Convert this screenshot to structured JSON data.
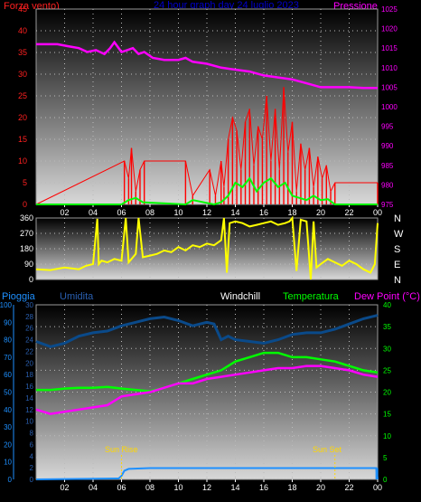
{
  "header": {
    "wind_label": "Forza vento)",
    "title": "24 hour graph day  24 luglio 2023",
    "pressure_label": "Pressione"
  },
  "lower_header": {
    "rain_label": "Pioggia",
    "humidity_label": "Umidita",
    "windchill_label": "Windchill",
    "temperature_label": "Temperatura",
    "dewpoint_label": "Dew Point (°C)"
  },
  "annotations": {
    "sunrise": "Sun Rise",
    "sunset": "Sun Set"
  },
  "colors": {
    "wind_axis": "#ff2020",
    "pressure": "#ff00ff",
    "wind_gust": "#ff0000",
    "wind_avg": "#00ff00",
    "direction": "#ffff00",
    "humidity": "#0a4a8a",
    "temperature": "#00ff00",
    "dewpoint": "#ff00ff",
    "rain": "#1e90ff",
    "rain_axis": "#1e90ff",
    "humidity_axis": "#2a5fb0",
    "sun_marker": "#ffd700",
    "title": "#0000cc"
  },
  "chart_data": [
    {
      "type": "line",
      "name": "wind-pressure",
      "x_ticks": [
        "02",
        "04",
        "06",
        "08",
        "10",
        "12",
        "14",
        "16",
        "18",
        "20",
        "22",
        "00"
      ],
      "x_range": [
        0,
        24
      ],
      "y_left_ticks": [
        0,
        5,
        10,
        15,
        20,
        25,
        30,
        35,
        40,
        45
      ],
      "y_left_range": [
        0,
        45
      ],
      "y_right_ticks": [
        975,
        980,
        985,
        990,
        995,
        1000,
        1005,
        1010,
        1015,
        1020,
        1025
      ],
      "y_right_range": [
        975,
        1025
      ],
      "grid": true,
      "pressure": {
        "x": [
          0,
          1.5,
          2.2,
          3,
          3.6,
          4.2,
          4.8,
          5.2,
          5.5,
          6.0,
          6.4,
          6.8,
          7.2,
          7.6,
          8.2,
          9,
          10,
          10.5,
          11,
          12,
          13,
          14,
          15,
          16,
          17,
          18,
          19,
          20,
          21,
          22,
          23,
          24
        ],
        "y": [
          1016,
          1016,
          1015.5,
          1015,
          1014,
          1014.5,
          1013.5,
          1015,
          1016.5,
          1014,
          1014.5,
          1015,
          1013.5,
          1014,
          1012.5,
          1012,
          1012,
          1012.5,
          1011.5,
          1011,
          1010,
          1009.5,
          1009,
          1008,
          1007.5,
          1007,
          1006,
          1005,
          1005,
          1005,
          1004.8,
          1004.8
        ]
      },
      "wind_gust": {
        "x": [
          0,
          6.2,
          6.5,
          6.7,
          7.0,
          7.3,
          7.6,
          10.5,
          11.0,
          12.2,
          12.6,
          13.0,
          13.2,
          13.5,
          13.8,
          14.1,
          14.4,
          14.7,
          15.0,
          15.3,
          15.6,
          15.9,
          16.2,
          16.5,
          16.8,
          17.1,
          17.4,
          17.7,
          18.0,
          18.3,
          18.6,
          18.9,
          19.2,
          19.5,
          19.8,
          20.1,
          20.4,
          20.7,
          21.0,
          24
        ],
        "y": [
          0,
          10,
          6,
          13,
          3,
          8,
          10,
          10,
          2,
          8,
          2,
          10,
          4,
          15,
          20,
          17,
          8,
          19,
          22,
          9,
          18,
          15,
          25,
          10,
          22,
          8,
          27,
          12,
          19,
          3,
          14,
          8,
          13,
          4,
          11,
          6,
          9,
          3,
          5,
          5
        ]
      },
      "wind_avg": {
        "x": [
          0,
          4,
          6,
          6.5,
          7,
          7.5,
          10.5,
          11,
          12.5,
          13,
          13.5,
          14,
          14.5,
          15,
          15.5,
          16,
          16.5,
          17,
          17.5,
          18,
          18.5,
          19,
          19.5,
          20,
          20.5,
          21,
          24
        ],
        "y": [
          0,
          0,
          0,
          1,
          1.5,
          0.5,
          0,
          1,
          0,
          0.5,
          2,
          5,
          4,
          6,
          3,
          5,
          6,
          4,
          5,
          2,
          1.5,
          1,
          2,
          1,
          1.2,
          0,
          0
        ]
      }
    },
    {
      "type": "line",
      "name": "wind-direction",
      "x_range": [
        0,
        24
      ],
      "y_left_ticks": [
        0,
        90,
        180,
        270,
        360
      ],
      "y_left_range": [
        0,
        360
      ],
      "y_right_labels": [
        "N",
        "W",
        "S",
        "E",
        "N"
      ],
      "grid": true,
      "direction": {
        "x": [
          0,
          1,
          2,
          3,
          3.5,
          4,
          4.3,
          4.4,
          4.6,
          5,
          5.5,
          6,
          6.3,
          6.5,
          7,
          7.2,
          7.5,
          8,
          8.5,
          9,
          9.5,
          10,
          10.5,
          11,
          11.5,
          12,
          12.5,
          13,
          13.2,
          13.4,
          13.6,
          14,
          14.5,
          15,
          15.5,
          16,
          16.5,
          17,
          17.5,
          17.8,
          18,
          18.3,
          18.6,
          19,
          19.3,
          19.5,
          19.7,
          20,
          20.5,
          21,
          21.5,
          22,
          22.5,
          23,
          23.5,
          23.8,
          24
        ],
        "y": [
          60,
          55,
          70,
          60,
          80,
          90,
          355,
          90,
          110,
          100,
          120,
          110,
          360,
          100,
          150,
          360,
          130,
          140,
          150,
          170,
          160,
          190,
          170,
          200,
          190,
          210,
          200,
          230,
          360,
          40,
          330,
          340,
          330,
          310,
          320,
          330,
          340,
          320,
          330,
          340,
          360,
          50,
          350,
          340,
          0,
          340,
          70,
          90,
          120,
          100,
          80,
          110,
          90,
          60,
          40,
          90,
          330
        ]
      }
    },
    {
      "type": "line",
      "name": "temperature-humidity-rain",
      "x_range": [
        0,
        24
      ],
      "y_rain_ticks": [
        0,
        10,
        20,
        30,
        40,
        50,
        60,
        70,
        80,
        90,
        100
      ],
      "y_humidity_ticks": [
        0,
        2,
        4,
        6,
        8,
        10,
        12,
        14,
        16,
        18,
        20,
        22,
        24,
        26,
        28,
        30
      ],
      "y_temp_ticks": [
        0,
        5,
        10,
        15,
        20,
        25,
        30,
        35,
        40
      ],
      "y_temp_range": [
        0,
        40
      ],
      "y_rain_range": [
        0,
        100
      ],
      "grid": true,
      "humidity": {
        "x": [
          0,
          1,
          2,
          3,
          4,
          5,
          6,
          7,
          8,
          9,
          10,
          11,
          12,
          12.5,
          13,
          13.5,
          14,
          15,
          16,
          17,
          18,
          19,
          20,
          21,
          22,
          23,
          24
        ],
        "y": [
          79,
          76,
          78,
          82,
          84,
          85,
          88,
          90,
          92,
          93,
          91,
          88,
          90,
          89,
          80,
          82,
          80,
          79,
          78,
          80,
          83,
          84,
          84,
          86,
          89,
          92,
          94
        ]
      },
      "temperature": {
        "x": [
          0,
          1,
          2,
          3,
          4,
          5,
          6,
          7,
          8,
          9,
          10,
          11,
          12,
          13,
          14,
          15,
          16,
          17,
          18,
          19,
          20,
          21,
          22,
          23,
          24
        ],
        "y": [
          20.5,
          20.5,
          20.8,
          21,
          21,
          21.2,
          20.8,
          20.5,
          20.2,
          21,
          22,
          23,
          24,
          25,
          27,
          28,
          29,
          29,
          28,
          28,
          27.5,
          27,
          26,
          25,
          24.5
        ]
      },
      "dewpoint": {
        "x": [
          0,
          1,
          2,
          3,
          4,
          5,
          6,
          7,
          8,
          9,
          10,
          11,
          12,
          13,
          14,
          15,
          16,
          17,
          18,
          19,
          20,
          21,
          22,
          23,
          24
        ],
        "y": [
          16,
          15,
          15.5,
          16,
          16.5,
          17,
          19,
          19.5,
          20,
          21,
          22,
          22,
          23,
          23.5,
          24,
          24.5,
          25,
          25.5,
          25.5,
          26,
          26,
          25.5,
          25,
          24,
          23.5
        ]
      },
      "rain": {
        "x": [
          0,
          5.8,
          6.0,
          6.2,
          6.5,
          8,
          10,
          12,
          14,
          16,
          18,
          20,
          22,
          23.9,
          24
        ],
        "y": [
          0,
          0.5,
          2,
          5,
          6,
          6.5,
          6.5,
          6.5,
          6.5,
          6.5,
          6.5,
          6.5,
          6.5,
          6.5,
          0
        ]
      },
      "sunrise_hour": 6.0,
      "sunset_hour": 21.0
    }
  ]
}
